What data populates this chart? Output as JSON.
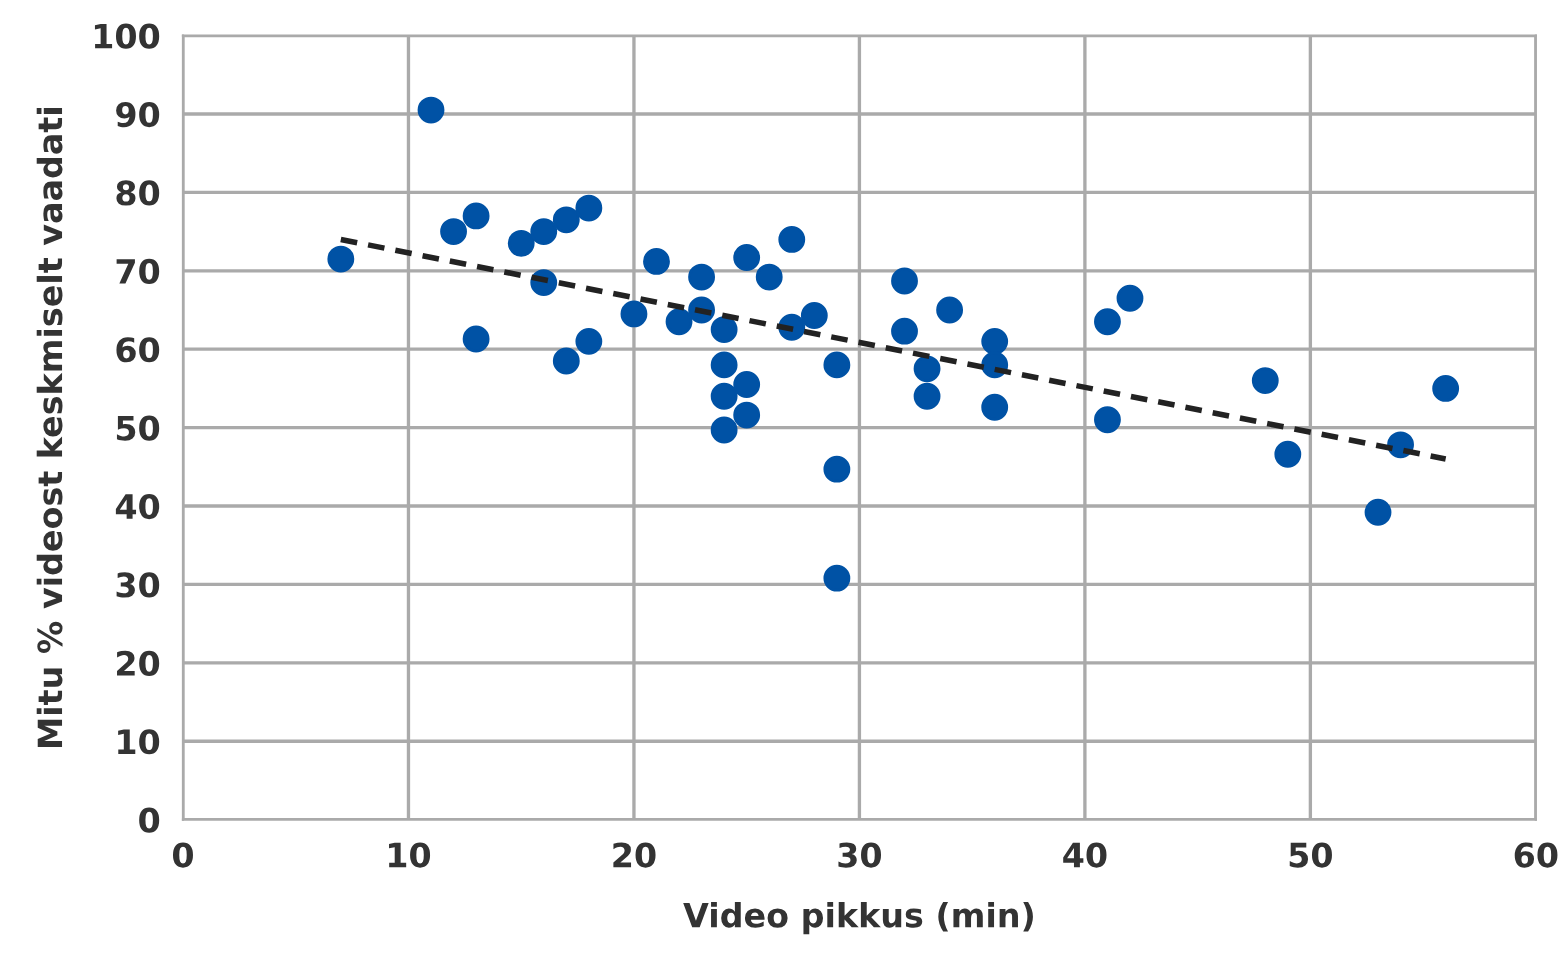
{
  "chart_data": {
    "type": "scatter",
    "xlabel": "Video pikkus (min)",
    "ylabel": "Mitu % videost keskmiselt vaadati",
    "xlim": [
      0,
      60
    ],
    "xticks": [
      0,
      10,
      20,
      30,
      40,
      50,
      60
    ],
    "ylim": [
      0,
      100
    ],
    "yticks": [
      0,
      10,
      20,
      30,
      40,
      50,
      60,
      70,
      80,
      90,
      100
    ],
    "grid": true,
    "marker": "circle",
    "legend": false,
    "series": [
      {
        "color": "#0052a5",
        "x": [
          7,
          11,
          12,
          13,
          13,
          15,
          16,
          16,
          17,
          17,
          18,
          18,
          20,
          21,
          22,
          23,
          23,
          24,
          24,
          24,
          24,
          25,
          25,
          25,
          26,
          27,
          27,
          28,
          29,
          29,
          29,
          32,
          32,
          33,
          33,
          34,
          36,
          36,
          36,
          41,
          41,
          42,
          48,
          49,
          53,
          54,
          56
        ],
        "values": [
          71.5,
          90.5,
          75,
          77,
          61.3,
          73.5,
          75,
          68.5,
          76.5,
          58.5,
          78,
          61,
          64.5,
          71.2,
          63.5,
          69.2,
          65,
          62.5,
          58,
          54,
          49.7,
          71.7,
          55.5,
          51.6,
          69.2,
          74,
          62.8,
          64.3,
          58,
          44.7,
          30.8,
          68.7,
          62.3,
          57.5,
          54,
          65,
          61,
          58,
          52.6,
          63.5,
          51,
          66.5,
          56,
          46.6,
          39.2,
          47.8,
          55
        ]
      },
      {
        "type": "line",
        "color": "#222222",
        "line_style": "dashed",
        "marker": "none",
        "x": [
          7,
          56
        ],
        "values": [
          74,
          46
        ]
      }
    ]
  }
}
